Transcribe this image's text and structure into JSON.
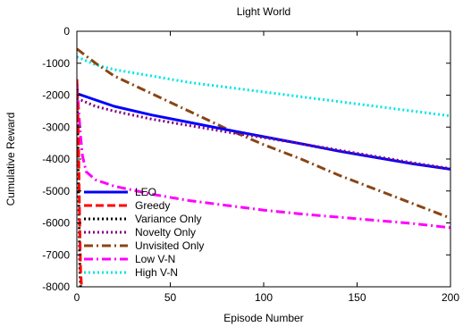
{
  "chart_data": {
    "type": "line",
    "title": "Light World",
    "xlabel": "Episode Number",
    "ylabel": "Cumulative Reward",
    "xlim": [
      0,
      200
    ],
    "ylim": [
      -8000,
      0
    ],
    "xticks": [
      0,
      50,
      100,
      150,
      200
    ],
    "yticks": [
      0,
      -1000,
      -2000,
      -3000,
      -4000,
      -5000,
      -6000,
      -7000,
      -8000
    ],
    "grid": false,
    "legend_position": "bottom-left",
    "series": [
      {
        "name": "LEO",
        "color": "#0000ff",
        "dash": "solid",
        "points": [
          [
            0,
            -1950
          ],
          [
            10,
            -2150
          ],
          [
            20,
            -2350
          ],
          [
            40,
            -2620
          ],
          [
            60,
            -2850
          ],
          [
            80,
            -3080
          ],
          [
            100,
            -3300
          ],
          [
            120,
            -3520
          ],
          [
            140,
            -3750
          ],
          [
            160,
            -3950
          ],
          [
            180,
            -4150
          ],
          [
            200,
            -4320
          ]
        ]
      },
      {
        "name": "Greedy",
        "color": "#ff0000",
        "dash": "dashed",
        "points": [
          [
            0,
            -1500
          ],
          [
            0.5,
            -2500
          ],
          [
            1,
            -4000
          ],
          [
            1.5,
            -6000
          ],
          [
            2,
            -7500
          ],
          [
            2.5,
            -8000
          ]
        ]
      },
      {
        "name": "Variance Only",
        "color": "#000000",
        "dash": "dotted",
        "points": [
          [
            0,
            -1800
          ],
          [
            0.4,
            -3000
          ],
          [
            0.8,
            -4500
          ],
          [
            1.2,
            -6000
          ],
          [
            1.6,
            -7500
          ],
          [
            2,
            -8000
          ]
        ]
      },
      {
        "name": "Novelty Only",
        "color": "#800080",
        "dash": "dotted",
        "points": [
          [
            0,
            -2100
          ],
          [
            10,
            -2350
          ],
          [
            20,
            -2500
          ],
          [
            40,
            -2750
          ],
          [
            60,
            -2950
          ],
          [
            80,
            -3150
          ],
          [
            100,
            -3330
          ],
          [
            120,
            -3520
          ],
          [
            140,
            -3720
          ],
          [
            160,
            -3920
          ],
          [
            180,
            -4120
          ],
          [
            200,
            -4300
          ]
        ]
      },
      {
        "name": "Unvisited Only",
        "color": "#8b4513",
        "dash": "dashdot",
        "points": [
          [
            0,
            -550
          ],
          [
            10,
            -1000
          ],
          [
            20,
            -1400
          ],
          [
            40,
            -1950
          ],
          [
            60,
            -2500
          ],
          [
            80,
            -3050
          ],
          [
            100,
            -3550
          ],
          [
            120,
            -4000
          ],
          [
            140,
            -4500
          ],
          [
            160,
            -4950
          ],
          [
            180,
            -5400
          ],
          [
            200,
            -5850
          ]
        ]
      },
      {
        "name": "Low V-N",
        "color": "#ff00ff",
        "dash": "dashdot",
        "points": [
          [
            0,
            -1600
          ],
          [
            1,
            -2500
          ],
          [
            2,
            -3300
          ],
          [
            3,
            -3900
          ],
          [
            5,
            -4400
          ],
          [
            10,
            -4650
          ],
          [
            20,
            -4850
          ],
          [
            40,
            -5100
          ],
          [
            60,
            -5300
          ],
          [
            80,
            -5450
          ],
          [
            100,
            -5600
          ],
          [
            120,
            -5720
          ],
          [
            140,
            -5820
          ],
          [
            160,
            -5920
          ],
          [
            180,
            -6020
          ],
          [
            200,
            -6150
          ]
        ]
      },
      {
        "name": "High V-N",
        "color": "#00e5e5",
        "dash": "dotted",
        "points": [
          [
            0,
            -800
          ],
          [
            10,
            -1050
          ],
          [
            20,
            -1200
          ],
          [
            40,
            -1400
          ],
          [
            60,
            -1600
          ],
          [
            80,
            -1750
          ],
          [
            100,
            -1900
          ],
          [
            120,
            -2050
          ],
          [
            140,
            -2200
          ],
          [
            160,
            -2350
          ],
          [
            180,
            -2500
          ],
          [
            200,
            -2650
          ]
        ]
      }
    ]
  }
}
